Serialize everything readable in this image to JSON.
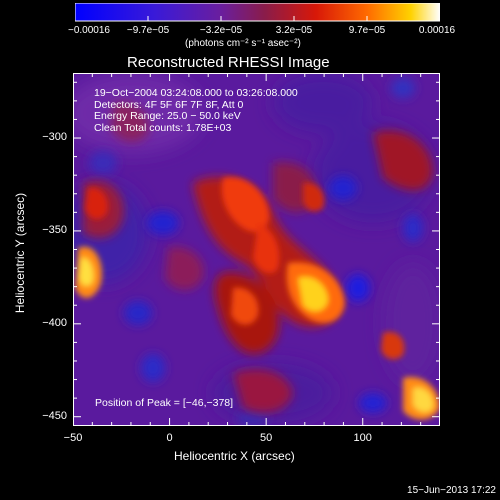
{
  "colorbar": {
    "ticks": [
      "−0.00016",
      "−9.7e−05",
      "−3.2e−05",
      "3.2e−05",
      "9.7e−05",
      "0.00016"
    ],
    "unit_label": "(photons cm⁻² s⁻¹ asec⁻²)",
    "range": [
      -0.00016,
      0.00016
    ]
  },
  "chart_data": {
    "type": "heatmap",
    "title": "Reconstructed RHESSI Image",
    "xlabel": "Heliocentric X (arcsec)",
    "ylabel": "Heliocentric Y (arcsec)",
    "xlim": [
      -50,
      140
    ],
    "ylim": [
      -455,
      -265
    ],
    "x_ticks": [
      -50,
      0,
      50,
      100
    ],
    "x_tick_labels": [
      "−50",
      "0",
      "50",
      "100"
    ],
    "y_ticks": [
      -300,
      -350,
      -400,
      -450
    ],
    "y_tick_labels": [
      "−300",
      "−350",
      "−400",
      "−450"
    ],
    "peak_position": [
      -46,
      -378
    ],
    "annotations": {
      "time": "19−Oct−2004 03:24:08.000 to 03:26:08.000",
      "detectors": "Detectors: 4F 5F 6F 7F 8F, Att 0",
      "energy": "Energy Range: 25.0 − 50.0 keV",
      "clean": "Clean    Total counts: 1.78E+03",
      "peak": "Position of Peak = [−46,−378]"
    }
  },
  "footer": {
    "timestamp": "15−Jun−2013 17:22"
  }
}
